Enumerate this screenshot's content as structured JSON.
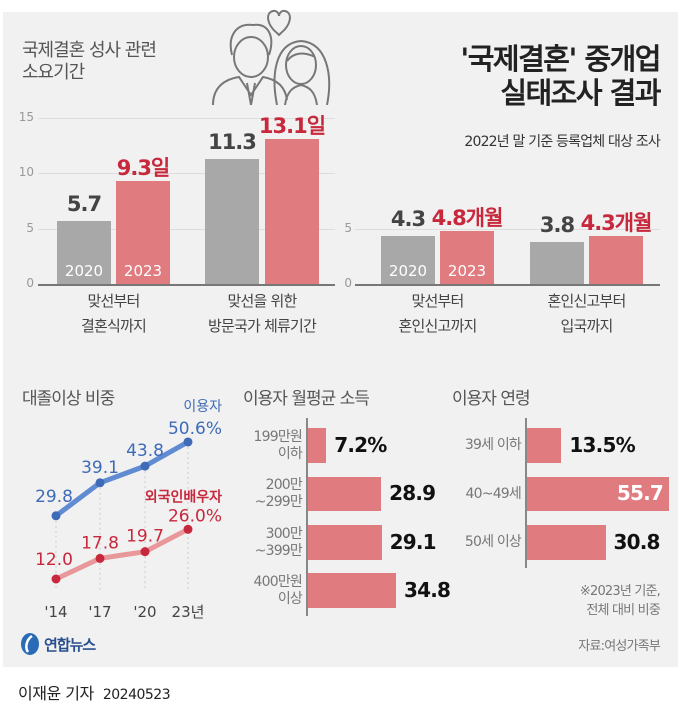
{
  "colors": {
    "y2020": "#a8a8a8",
    "y2023": "#e07b7f",
    "red_text": "#c8283c",
    "blue": "#3e6bb8",
    "blue_line": "#5f8bd2",
    "red_line": "#e8979a",
    "hbar": "#e07b7f"
  },
  "header": {
    "section_title_line1": "국제결혼 성사 관련",
    "section_title_line2": "소요기간",
    "main_title_line1": "'국제결혼' 중개업",
    "main_title_line2": "실태조사 결과",
    "subtitle": "2022년 말 기준 등록업체 대상 조사",
    "illustration": "couple-heart-icon"
  },
  "chart_data": [
    {
      "type": "bar",
      "title": "국제결혼 성사 관련 소요기간",
      "yticks": [
        0,
        5,
        10,
        15
      ],
      "ylim": [
        0,
        15
      ],
      "categories": [
        [
          "맞선부터",
          "결혼식까지"
        ],
        [
          "맞선을 위한",
          "방문국가 체류기간"
        ]
      ],
      "series": [
        {
          "name": "2020",
          "values": [
            5.7,
            11.3
          ]
        },
        {
          "name": "2023",
          "values": [
            9.3,
            13.1
          ]
        }
      ],
      "labels_2020": [
        "5.7",
        "11.3"
      ],
      "labels_2023": [
        "9.3일",
        "13.1일"
      ],
      "unit": "일"
    },
    {
      "type": "bar",
      "yticks": [
        0,
        5
      ],
      "ylim": [
        0,
        15
      ],
      "categories": [
        [
          "맞선부터",
          "혼인신고까지"
        ],
        [
          "혼인신고부터",
          "입국까지"
        ]
      ],
      "series": [
        {
          "name": "2020",
          "values": [
            4.3,
            3.8
          ]
        },
        {
          "name": "2023",
          "values": [
            4.8,
            4.3
          ]
        }
      ],
      "labels_2020": [
        "4.3",
        "3.8"
      ],
      "labels_2023": [
        "4.8개월",
        "4.3개월"
      ],
      "unit": "개월"
    },
    {
      "type": "line",
      "title": "대졸이상 비중",
      "x": [
        "'14",
        "'17",
        "'20",
        "23년"
      ],
      "series": [
        {
          "name": "이용자",
          "values": [
            29.8,
            39.1,
            43.8,
            50.6
          ],
          "labels": [
            "29.8",
            "39.1",
            "43.8",
            "50.6%"
          ]
        },
        {
          "name": "외국인배우자",
          "values": [
            12.0,
            17.8,
            19.7,
            26.0
          ],
          "labels": [
            "12.0",
            "17.8",
            "19.7",
            "26.0%"
          ]
        }
      ]
    },
    {
      "type": "bar",
      "orientation": "horizontal",
      "title": "이용자 월평균 소득",
      "categories": [
        [
          "199만원",
          "이하"
        ],
        [
          "200만",
          "~299만"
        ],
        [
          "300만",
          "~399만"
        ],
        [
          "400만원",
          "이상"
        ]
      ],
      "values": [
        7.2,
        28.9,
        29.1,
        34.8
      ],
      "labels": [
        "7.2%",
        "28.9",
        "29.1",
        "34.8"
      ]
    },
    {
      "type": "bar",
      "orientation": "horizontal",
      "title": "이용자 연령",
      "categories": [
        [
          "39세 이하"
        ],
        [
          "40~49세"
        ],
        [
          "50세 이상"
        ]
      ],
      "values": [
        13.5,
        55.7,
        30.8
      ],
      "labels": [
        "13.5%",
        "55.7",
        "30.8"
      ]
    }
  ],
  "footnote_line1": "※2023년 기준,",
  "footnote_line2": "전체 대비 비중",
  "source": "자료:여성가족부",
  "logo": "연합뉴스",
  "byline": {
    "author": "이재윤 기자",
    "date": "20240523"
  }
}
